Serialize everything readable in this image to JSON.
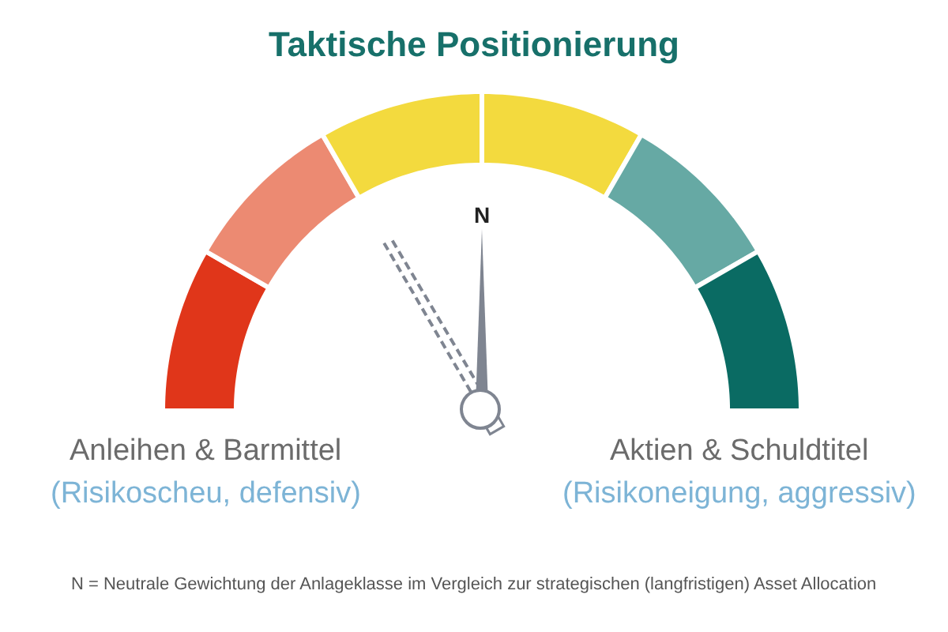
{
  "chart_data": {
    "type": "donut",
    "title": "Taktische Positionierung",
    "categories": [
      null,
      null,
      null,
      null,
      null,
      null
    ],
    "values": [
      16.67,
      16.67,
      16.67,
      16.67,
      16.67,
      16.67
    ],
    "colors": [
      "#e0361a",
      "#ec8a72",
      "#f3da3e",
      "#f3da3e",
      "#66a9a4",
      "#0a6b63"
    ],
    "annotations": [
      "N",
      "Anleihen & Barmittel",
      "(Risikoscheu, defensiv)",
      "Aktien & Schuldtitel",
      "(Risikoneigung, aggressiv)",
      "N = Neutrale Gewichtung der Anlageklasse im Vergleich zur strategischen (langfristigen) Asset Allocation"
    ]
  }
}
